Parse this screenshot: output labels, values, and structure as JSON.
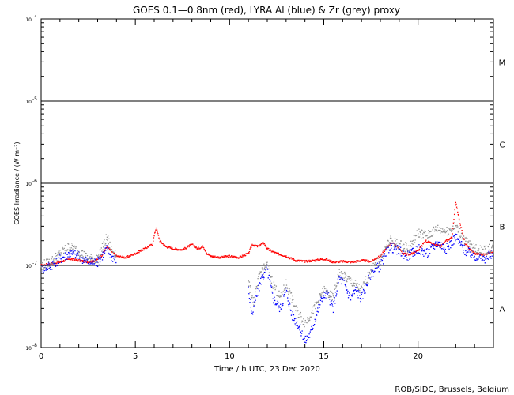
{
  "chart_data": {
    "type": "line",
    "title": "GOES 0.1—0.8nm (red), LYRA Al (blue) & Zr (grey) proxy",
    "xlabel": "Time / h UTC, 23 Dec 2020",
    "ylabel": "GOES Irradiance / (W m⁻²)",
    "credit": "ROB/SIDC, Brussels, Belgium",
    "xlim": [
      0,
      24
    ],
    "ylim": [
      1e-08,
      0.0001
    ],
    "yscale": "log",
    "x_ticks": [
      0,
      5,
      10,
      15,
      20
    ],
    "x_tick_labels": [
      "0",
      "5",
      "10",
      "15",
      "20"
    ],
    "y_ticks": [
      {
        "value": 1e-08,
        "mantissa": "10",
        "exponent": "-8"
      },
      {
        "value": 1e-07,
        "mantissa": "10",
        "exponent": "-7"
      },
      {
        "value": 1e-06,
        "mantissa": "10",
        "exponent": "-6"
      },
      {
        "value": 1e-05,
        "mantissa": "10",
        "exponent": "-5"
      },
      {
        "value": 0.0001,
        "mantissa": "10",
        "exponent": "-4"
      }
    ],
    "threshold_lines": [
      1e-07,
      1e-06,
      1e-05
    ],
    "flare_classes": [
      {
        "label": "A",
        "value": 3e-08
      },
      {
        "label": "B",
        "value": 3e-07
      },
      {
        "label": "C",
        "value": 3e-06
      },
      {
        "label": "M",
        "value": 3e-05
      }
    ],
    "series": [
      {
        "name": "GOES 0.1-0.8nm",
        "color": "#ff0000",
        "x": [
          0.0,
          0.5,
          1.0,
          1.5,
          2.0,
          2.5,
          2.9,
          3.2,
          3.5,
          3.7,
          4.0,
          4.5,
          5.0,
          5.5,
          5.9,
          6.1,
          6.3,
          6.6,
          7.0,
          7.5,
          8.0,
          8.3,
          8.6,
          8.8,
          9.0,
          9.5,
          10.0,
          10.5,
          11.0,
          11.2,
          11.5,
          11.8,
          12.0,
          12.2,
          12.5,
          13.0,
          13.5,
          14.0,
          14.5,
          15.0,
          15.5,
          16.0,
          16.5,
          17.0,
          17.5,
          18.0,
          18.3,
          18.6,
          18.9,
          19.2,
          19.5,
          20.0,
          20.4,
          20.8,
          21.2,
          21.5,
          21.8,
          22.0,
          22.2,
          22.5,
          23.0,
          23.5,
          24.0
        ],
        "y": [
          1e-07,
          1.05e-07,
          1.1e-07,
          1.2e-07,
          1.15e-07,
          1.1e-07,
          1.15e-07,
          1.3e-07,
          1.7e-07,
          1.5e-07,
          1.3e-07,
          1.25e-07,
          1.4e-07,
          1.6e-07,
          1.8e-07,
          2.9e-07,
          2e-07,
          1.7e-07,
          1.6e-07,
          1.55e-07,
          1.8e-07,
          1.6e-07,
          1.7e-07,
          1.4e-07,
          1.3e-07,
          1.25e-07,
          1.3e-07,
          1.25e-07,
          1.4e-07,
          1.8e-07,
          1.7e-07,
          1.9e-07,
          1.6e-07,
          1.5e-07,
          1.4e-07,
          1.3e-07,
          1.15e-07,
          1.12e-07,
          1.15e-07,
          1.2e-07,
          1.1e-07,
          1.12e-07,
          1.1e-07,
          1.15e-07,
          1.12e-07,
          1.3e-07,
          1.6e-07,
          1.9e-07,
          1.7e-07,
          1.4e-07,
          1.35e-07,
          1.5e-07,
          2e-07,
          1.8e-07,
          1.7e-07,
          2e-07,
          2.2e-07,
          6e-07,
          3.5e-07,
          1.8e-07,
          1.4e-07,
          1.35e-07,
          1.5e-07
        ]
      },
      {
        "name": "LYRA Al",
        "color": "#0000ff",
        "x": [
          0.0,
          0.5,
          1.0,
          1.5,
          2.0,
          2.5,
          3.0,
          3.5,
          3.7,
          4.0,
          11.0,
          11.2,
          11.4,
          11.7,
          12.0,
          12.3,
          12.7,
          13.0,
          13.3,
          13.6,
          14.0,
          14.3,
          14.6,
          14.9,
          15.2,
          15.5,
          15.8,
          16.1,
          16.4,
          16.7,
          17.0,
          17.5,
          18.0,
          18.5,
          19.0,
          19.5,
          20.0,
          20.5,
          21.0,
          21.5,
          22.0,
          22.5,
          23.0,
          23.5,
          24.0
        ],
        "y": [
          9e-08,
          1e-07,
          1.2e-07,
          1.4e-07,
          1.3e-07,
          1.1e-07,
          1.1e-07,
          1.6e-07,
          1.3e-07,
          1.2e-07,
          5e-08,
          2.5e-08,
          4e-08,
          7e-08,
          9e-08,
          4e-08,
          3e-08,
          5e-08,
          2.5e-08,
          2e-08,
          1.2e-08,
          1.5e-08,
          2.5e-08,
          4e-08,
          4.5e-08,
          3e-08,
          7e-08,
          6e-08,
          4e-08,
          5e-08,
          4e-08,
          8e-08,
          1e-07,
          1.7e-07,
          1.5e-07,
          1.3e-07,
          1.6e-07,
          1.4e-07,
          1.9e-07,
          1.6e-07,
          2.2e-07,
          1.5e-07,
          1.3e-07,
          1.2e-07,
          1.4e-07
        ]
      },
      {
        "name": "LYRA Zr",
        "color": "#909090",
        "x": [
          0.0,
          0.5,
          1.0,
          1.5,
          2.0,
          2.5,
          3.0,
          3.5,
          3.7,
          4.0,
          11.0,
          11.3,
          11.6,
          12.0,
          12.3,
          12.7,
          13.0,
          13.5,
          14.0,
          14.5,
          15.0,
          15.5,
          15.8,
          16.2,
          16.6,
          17.0,
          17.5,
          18.0,
          18.5,
          19.0,
          19.5,
          20.0,
          20.5,
          21.0,
          21.5,
          22.0,
          22.5,
          23.0,
          23.5,
          24.0
        ],
        "y": [
          1e-07,
          1.1e-07,
          1.4e-07,
          1.7e-07,
          1.5e-07,
          1.2e-07,
          1.2e-07,
          2.2e-07,
          1.6e-07,
          1.4e-07,
          6e-08,
          3.5e-08,
          8e-08,
          1e-07,
          6e-08,
          4e-08,
          6e-08,
          3e-08,
          2e-08,
          3e-08,
          5e-08,
          4e-08,
          8e-08,
          7e-08,
          6e-08,
          5e-08,
          9e-08,
          1.2e-07,
          2e-07,
          1.8e-07,
          1.6e-07,
          2.5e-07,
          2.3e-07,
          2.8e-07,
          2.6e-07,
          3e-07,
          2e-07,
          1.6e-07,
          1.5e-07,
          1.7e-07
        ]
      }
    ]
  }
}
